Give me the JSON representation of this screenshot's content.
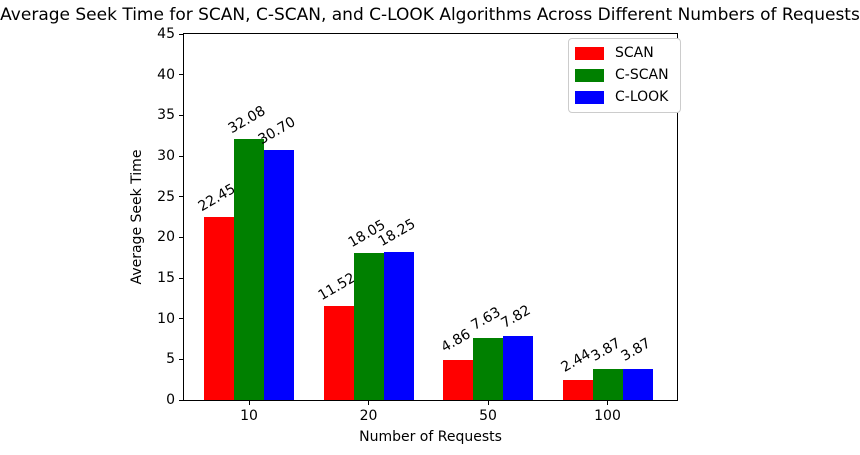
{
  "chart_data": {
    "type": "bar",
    "title": "Average Seek Time for SCAN, C-SCAN, and C-LOOK Algorithms Across Different Numbers of Requests",
    "xlabel": "Number of Requests",
    "ylabel": "Average Seek Time",
    "categories": [
      "10",
      "20",
      "50",
      "100"
    ],
    "series": [
      {
        "name": "SCAN",
        "color": "#ff0000",
        "values": [
          22.45,
          11.52,
          4.86,
          2.44
        ],
        "value_labels": [
          "22.45",
          "11.52",
          "4.86",
          "2.44"
        ]
      },
      {
        "name": "C-SCAN",
        "color": "#008000",
        "values": [
          32.08,
          18.05,
          7.63,
          3.87
        ],
        "value_labels": [
          "32.08",
          "18.05",
          "7.63",
          "3.87"
        ]
      },
      {
        "name": "C-LOOK",
        "color": "#0000ff",
        "values": [
          30.7,
          18.25,
          7.82,
          3.87
        ],
        "value_labels": [
          "30.70",
          "18.25",
          "7.82",
          "3.87"
        ]
      }
    ],
    "ylim": [
      0,
      45
    ],
    "yticks": [
      0,
      5,
      10,
      15,
      20,
      25,
      30,
      35,
      40,
      45
    ],
    "bar_label_rotation_deg": 30,
    "legend_position": "upper right",
    "grid": false
  }
}
